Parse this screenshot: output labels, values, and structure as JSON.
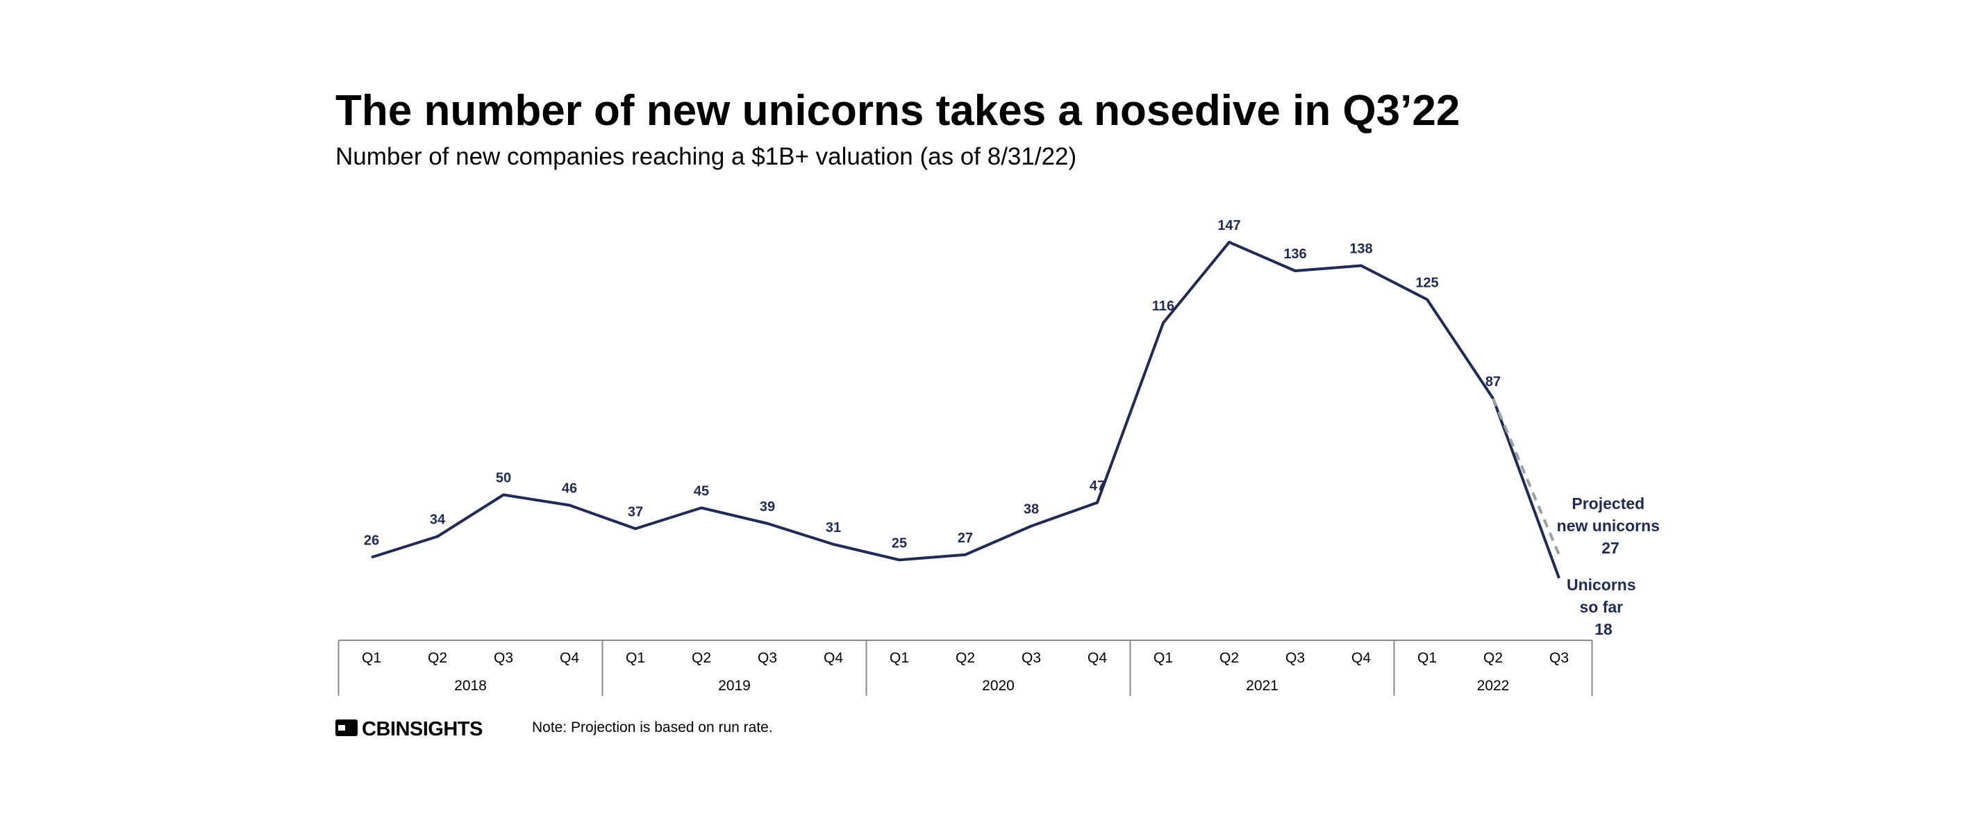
{
  "title": "The number of new unicorns takes a nosedive in Q3’22",
  "subtitle": "Number of new companies reaching a $1B+ valuation (as of 8/31/22)",
  "colors": {
    "line": "#1f2a55",
    "projection": "#9aa0a8",
    "axis": "#8a8a8a",
    "text": "#000000"
  },
  "brand": "CBINSIGHTS",
  "note": "Note: Projection is based on run rate.",
  "chart_data": {
    "type": "line",
    "title": "The number of new unicorns takes a nosedive in Q3’22",
    "ylabel": "",
    "xlabel": "",
    "ylim": [
      0,
      160
    ],
    "grid": false,
    "categories": [
      "Q1",
      "Q2",
      "Q3",
      "Q4",
      "Q1",
      "Q2",
      "Q3",
      "Q4",
      "Q1",
      "Q2",
      "Q3",
      "Q4",
      "Q1",
      "Q2",
      "Q3",
      "Q4",
      "Q1",
      "Q2",
      "Q3"
    ],
    "years": [
      {
        "label": "2018",
        "quarters": 4
      },
      {
        "label": "2019",
        "quarters": 4
      },
      {
        "label": "2020",
        "quarters": 4
      },
      {
        "label": "2021",
        "quarters": 4
      },
      {
        "label": "2022",
        "quarters": 3
      }
    ],
    "series": [
      {
        "name": "New unicorns",
        "values": [
          26,
          34,
          50,
          46,
          37,
          45,
          39,
          31,
          25,
          27,
          38,
          47,
          116,
          147,
          136,
          138,
          125,
          87,
          18
        ]
      },
      {
        "name": "Projected",
        "values": [
          null,
          null,
          null,
          null,
          null,
          null,
          null,
          null,
          null,
          null,
          null,
          null,
          null,
          null,
          null,
          null,
          null,
          87,
          27
        ]
      }
    ],
    "annotations": {
      "projected": {
        "lines": [
          "Projected",
          "new unicorns",
          "27"
        ]
      },
      "so_far": {
        "lines": [
          "Unicorns",
          "so far",
          "18"
        ]
      }
    }
  }
}
